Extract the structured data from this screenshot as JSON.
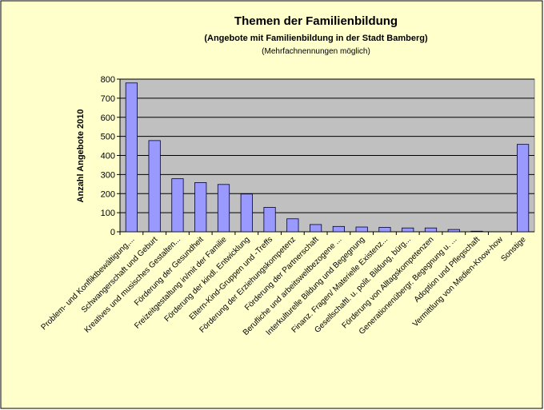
{
  "chart_data": {
    "type": "bar",
    "title": "Themen der Familienbildung",
    "subtitle": "(Angebote mit Familienbildung in der Stadt Bamberg)",
    "note": "(Mehrfachnennungen möglich)",
    "y_label": "Anzahl Angebote 2010",
    "categories": [
      "Problem- und Konfliktbewältigung,...",
      "Schwangerschaft und Geburt",
      "Kreatives und musisches Gestalten...",
      "Förderung der Gesundheit",
      "Freizeitgestaltung in/mit der Familie",
      "Förderung der kindl. Entwicklung",
      "Eltern-Kind-Gruppen und -Treffs",
      "Förderung der Erziehungskompetenz",
      "Förderung der Partnerschaft",
      "Berufliche und arbeitsweltbezogene ...",
      "Interkulturelle Bildung und Begegnung",
      "Finanz. Fragen/ Materielle Existenz...",
      "Gesellschaftl. u. polit. Bildung, bürg...",
      "Förderung von Alltagskompetenzen",
      "Generationenübergr. Begegnung u. ...",
      "Adoption und Pflegschaft",
      "Vermittlung von Medien-Know-how",
      "Sonstige"
    ],
    "values": [
      780,
      478,
      278,
      258,
      248,
      198,
      128,
      68,
      38,
      28,
      25,
      23,
      20,
      20,
      12,
      3,
      0,
      458
    ],
    "color": "#9999ff",
    "ylim": [
      0,
      800
    ],
    "yticks": [
      0,
      100,
      200,
      300,
      400,
      500,
      600,
      700,
      800
    ],
    "grid": true
  }
}
